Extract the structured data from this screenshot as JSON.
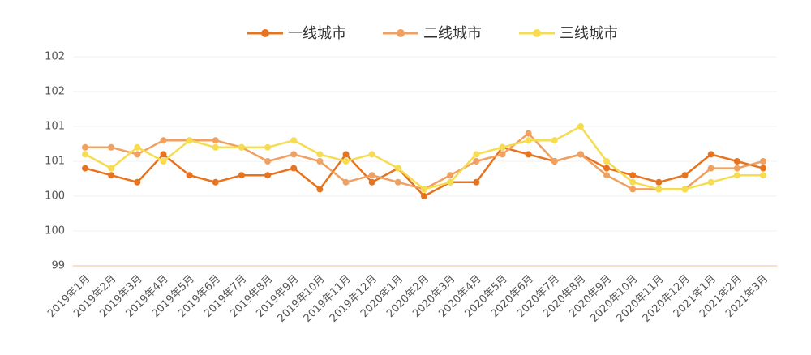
{
  "chart_data": {
    "type": "line",
    "categories": [
      "2019年1月",
      "2019年2月",
      "2019年3月",
      "2019年4月",
      "2019年5月",
      "2019年6月",
      "2019年7月",
      "2019年8月",
      "2019年9月",
      "2019年10月",
      "2019年11月",
      "2019年12月",
      "2020年1月",
      "2020年2月",
      "2020年3月",
      "2020年4月",
      "2020年5月",
      "2020年6月",
      "2020年7月",
      "2020年8月",
      "2020年9月",
      "2020年10月",
      "2020年11月",
      "2020年12月",
      "2021年1月",
      "2021年2月",
      "2021年3月"
    ],
    "series": [
      {
        "name": "一线城市",
        "color": "#e8731e",
        "values": [
          100.4,
          100.3,
          100.2,
          100.6,
          100.3,
          100.2,
          100.3,
          100.3,
          100.4,
          100.1,
          100.6,
          100.2,
          100.4,
          100.0,
          100.2,
          100.2,
          100.7,
          100.6,
          100.5,
          100.6,
          100.4,
          100.3,
          100.2,
          100.3,
          100.6,
          100.5,
          100.4
        ]
      },
      {
        "name": "二线城市",
        "color": "#f0a060",
        "values": [
          100.7,
          100.7,
          100.6,
          100.8,
          100.8,
          100.8,
          100.7,
          100.5,
          100.6,
          100.5,
          100.2,
          100.3,
          100.2,
          100.1,
          100.3,
          100.5,
          100.6,
          100.9,
          100.5,
          100.6,
          100.3,
          100.1,
          100.1,
          100.1,
          100.4,
          100.4,
          100.5
        ]
      },
      {
        "name": "三线城市",
        "color": "#f5dc50",
        "values": [
          100.6,
          100.4,
          100.7,
          100.5,
          100.8,
          100.7,
          100.7,
          100.7,
          100.8,
          100.6,
          100.5,
          100.6,
          100.4,
          100.1,
          100.2,
          100.6,
          100.7,
          100.8,
          100.8,
          101.0,
          100.5,
          100.2,
          100.1,
          100.1,
          100.2,
          100.3,
          100.3
        ]
      }
    ],
    "ylim": [
      99,
      102
    ],
    "yticks": [
      99,
      {
        "value": 99.5,
        "label": "100"
      },
      100,
      {
        "value": 100.5,
        "label": "101"
      },
      101,
      {
        "value": 101.5,
        "label": "102"
      },
      102
    ],
    "grid": true
  }
}
